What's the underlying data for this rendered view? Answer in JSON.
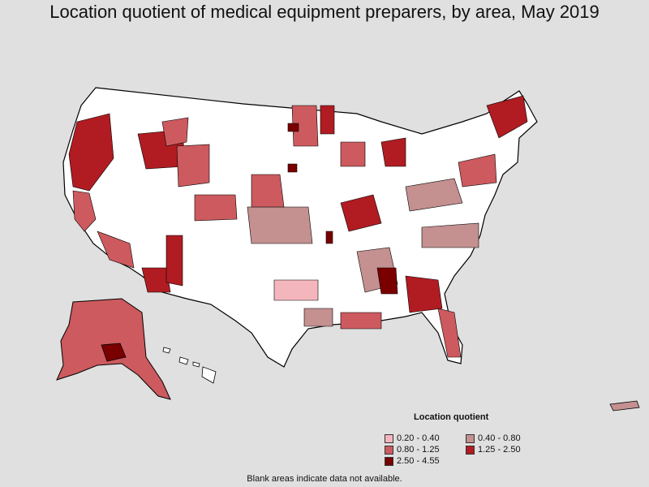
{
  "title": "Location quotient of medical equipment preparers, by area, May 2019",
  "legend": {
    "title": "Location quotient",
    "items": [
      {
        "label": "0.20 - 0.40",
        "color": "#f4b6bd"
      },
      {
        "label": "0.40 - 0.80",
        "color": "#c49090"
      },
      {
        "label": "0.80 - 1.25",
        "color": "#cc5a5e"
      },
      {
        "label": "1.25 - 2.50",
        "color": "#b01c22"
      },
      {
        "label": "2.50 - 4.55",
        "color": "#7a0000"
      }
    ]
  },
  "footnote": "Blank areas indicate data not available.",
  "colors": {
    "background": "#e0e0e0",
    "blank_area": "#ffffff",
    "border": "#000000"
  }
}
